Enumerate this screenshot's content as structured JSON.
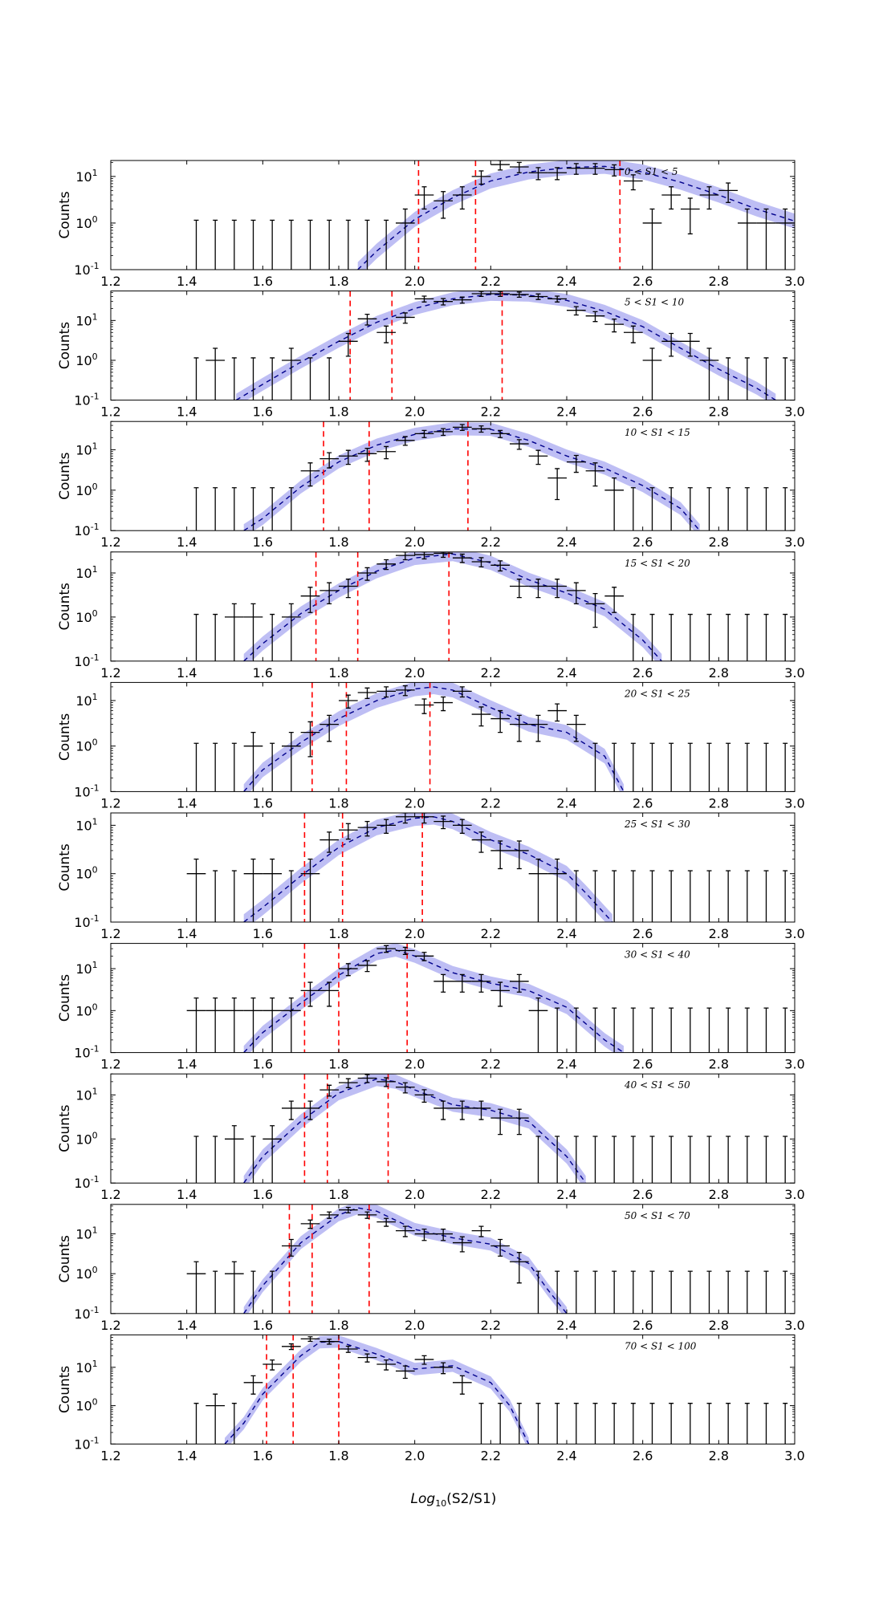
{
  "chart_data": {
    "type": "line",
    "xlabel": "Log10(S2/S1)",
    "ylabel": "Counts",
    "xlim": [
      1.2,
      3.0
    ],
    "xticks": [
      "1.2",
      "1.4",
      "1.6",
      "1.8",
      "2.0",
      "2.2",
      "2.4",
      "2.6",
      "2.8",
      "3.0"
    ],
    "yscale": "log",
    "yticks": [
      "10-1",
      "100",
      "101"
    ],
    "bin_centers": [
      1.425,
      1.475,
      1.525,
      1.575,
      1.625,
      1.675,
      1.725,
      1.775,
      1.825,
      1.875,
      1.925,
      1.975,
      2.025,
      2.075,
      2.125,
      2.175,
      2.225,
      2.275,
      2.325,
      2.375,
      2.425,
      2.475,
      2.525,
      2.575,
      2.625,
      2.675,
      2.725,
      2.775,
      2.825,
      2.875,
      2.925,
      2.975
    ],
    "legend": [],
    "panels": [
      {
        "label": "0 < S1 < 5",
        "ymax": 22,
        "counts": [
          0,
          0,
          0,
          0,
          0,
          0,
          0,
          0,
          0,
          0,
          0,
          1,
          4,
          3,
          4,
          10,
          18,
          16,
          12,
          12,
          15,
          15,
          14,
          8,
          1,
          4,
          2,
          4,
          5,
          1,
          1,
          1
        ],
        "fit": [
          [
            1.85,
            0.1
          ],
          [
            1.9,
            0.25
          ],
          [
            2.0,
            1.2
          ],
          [
            2.1,
            3.5
          ],
          [
            2.2,
            8
          ],
          [
            2.3,
            12.5
          ],
          [
            2.4,
            15.5
          ],
          [
            2.5,
            16.5
          ],
          [
            2.6,
            12.5
          ],
          [
            2.7,
            7.5
          ],
          [
            2.8,
            4
          ],
          [
            2.9,
            2
          ],
          [
            3.0,
            1.1
          ]
        ],
        "percentile_lines": [
          2.01,
          2.16,
          2.54
        ]
      },
      {
        "label": "5 < S1 < 10",
        "ymax": 55,
        "counts": [
          0,
          1,
          0,
          0,
          0,
          1,
          0,
          0,
          3,
          11,
          5,
          12,
          35,
          30,
          33,
          47,
          47,
          45,
          40,
          35,
          18,
          13,
          8,
          5,
          1,
          3,
          3,
          1,
          0,
          0,
          0,
          0
        ],
        "fit": [
          [
            1.53,
            0.1
          ],
          [
            1.6,
            0.25
          ],
          [
            1.7,
            0.9
          ],
          [
            1.8,
            3
          ],
          [
            1.9,
            9
          ],
          [
            2.0,
            20
          ],
          [
            2.1,
            35
          ],
          [
            2.2,
            45
          ],
          [
            2.3,
            43
          ],
          [
            2.4,
            32
          ],
          [
            2.5,
            17
          ],
          [
            2.6,
            7
          ],
          [
            2.7,
            2
          ],
          [
            2.8,
            0.6
          ],
          [
            2.9,
            0.2
          ],
          [
            2.95,
            0.1
          ]
        ],
        "percentile_lines": [
          1.83,
          1.94,
          2.23
        ]
      },
      {
        "label": "10 < S1 < 15",
        "ymax": 50,
        "counts": [
          0,
          0,
          0,
          0,
          0,
          0,
          3,
          6,
          7,
          8,
          9,
          17,
          25,
          28,
          36,
          33,
          25,
          14,
          7,
          2,
          5,
          3,
          1,
          0,
          0,
          0,
          0,
          0,
          0,
          0,
          0,
          0
        ],
        "fit": [
          [
            1.55,
            0.1
          ],
          [
            1.6,
            0.2
          ],
          [
            1.7,
            1.2
          ],
          [
            1.8,
            5
          ],
          [
            1.9,
            13
          ],
          [
            2.0,
            24
          ],
          [
            2.1,
            33
          ],
          [
            2.2,
            32
          ],
          [
            2.3,
            17
          ],
          [
            2.4,
            7
          ],
          [
            2.5,
            3.5
          ],
          [
            2.6,
            1.3
          ],
          [
            2.7,
            0.35
          ],
          [
            2.75,
            0.1
          ]
        ],
        "percentile_lines": [
          1.76,
          1.88,
          2.14
        ]
      },
      {
        "label": "15 < S1 < 20",
        "ymax": 30,
        "counts": [
          0,
          0,
          1,
          1,
          0,
          1,
          3,
          4,
          5,
          10,
          16,
          25,
          26,
          28,
          22,
          18,
          15,
          5,
          5,
          5,
          4,
          2,
          3,
          0,
          0,
          0,
          0,
          0,
          0,
          0,
          0,
          0
        ],
        "fit": [
          [
            1.55,
            0.1
          ],
          [
            1.6,
            0.25
          ],
          [
            1.7,
            1.2
          ],
          [
            1.8,
            4
          ],
          [
            1.9,
            11
          ],
          [
            2.0,
            22
          ],
          [
            2.1,
            27
          ],
          [
            2.2,
            17
          ],
          [
            2.3,
            7
          ],
          [
            2.4,
            3.5
          ],
          [
            2.5,
            1.5
          ],
          [
            2.6,
            0.3
          ],
          [
            2.65,
            0.1
          ]
        ],
        "percentile_lines": [
          1.74,
          1.85,
          2.09
        ]
      },
      {
        "label": "20 < S1 < 25",
        "ymax": 25,
        "counts": [
          0,
          0,
          0,
          1,
          0,
          1,
          2,
          3,
          10,
          15,
          16,
          17,
          8,
          9,
          16,
          5,
          4,
          3,
          3,
          6,
          3,
          0,
          0,
          0,
          0,
          0,
          0,
          0,
          0,
          0,
          0,
          0
        ],
        "fit": [
          [
            1.55,
            0.1
          ],
          [
            1.6,
            0.3
          ],
          [
            1.7,
            1.2
          ],
          [
            1.8,
            4
          ],
          [
            1.9,
            10
          ],
          [
            2.0,
            18
          ],
          [
            2.05,
            20
          ],
          [
            2.1,
            17
          ],
          [
            2.2,
            7
          ],
          [
            2.3,
            3
          ],
          [
            2.4,
            2
          ],
          [
            2.5,
            0.6
          ],
          [
            2.55,
            0.1
          ]
        ],
        "percentile_lines": [
          1.73,
          1.82,
          2.04
        ]
      },
      {
        "label": "25 < S1 < 30",
        "ymax": 18,
        "counts": [
          1,
          0,
          0,
          1,
          1,
          0,
          1,
          5,
          8,
          9,
          10,
          15,
          15,
          12,
          10,
          5,
          3,
          3,
          1,
          1,
          0,
          0,
          0,
          0,
          0,
          0,
          0,
          0,
          0,
          0,
          0,
          0
        ],
        "fit": [
          [
            1.55,
            0.1
          ],
          [
            1.6,
            0.2
          ],
          [
            1.7,
            0.9
          ],
          [
            1.8,
            3.5
          ],
          [
            1.9,
            9
          ],
          [
            2.0,
            14
          ],
          [
            2.05,
            15
          ],
          [
            2.1,
            12
          ],
          [
            2.2,
            5
          ],
          [
            2.3,
            2.5
          ],
          [
            2.4,
            1
          ],
          [
            2.45,
            0.4
          ],
          [
            2.52,
            0.1
          ]
        ],
        "percentile_lines": [
          1.71,
          1.81,
          2.02
        ]
      },
      {
        "label": "30 < S1 < 40",
        "ymax": 40,
        "counts": [
          1,
          1,
          1,
          1,
          1,
          1,
          3,
          3,
          10,
          12,
          30,
          27,
          20,
          5,
          5,
          5,
          3,
          5,
          1,
          0,
          0,
          0,
          0,
          0,
          0,
          0,
          0,
          0,
          0,
          0,
          0,
          0
        ],
        "fit": [
          [
            1.55,
            0.1
          ],
          [
            1.6,
            0.3
          ],
          [
            1.7,
            1.5
          ],
          [
            1.8,
            7
          ],
          [
            1.9,
            23
          ],
          [
            1.95,
            28
          ],
          [
            2.0,
            20
          ],
          [
            2.1,
            8
          ],
          [
            2.2,
            4.5
          ],
          [
            2.3,
            3
          ],
          [
            2.4,
            1.2
          ],
          [
            2.5,
            0.2
          ],
          [
            2.55,
            0.1
          ]
        ],
        "percentile_lines": [
          1.71,
          1.8,
          1.98
        ]
      },
      {
        "label": "40 < S1 < 50",
        "ymax": 30,
        "counts": [
          0,
          0,
          1,
          0,
          1,
          5,
          5,
          13,
          19,
          24,
          20,
          15,
          10,
          5,
          5,
          5,
          3,
          3,
          0,
          0,
          0,
          0,
          0,
          0,
          0,
          0,
          0,
          0,
          0,
          0,
          0,
          0
        ],
        "fit": [
          [
            1.55,
            0.1
          ],
          [
            1.6,
            0.4
          ],
          [
            1.7,
            2.5
          ],
          [
            1.8,
            11
          ],
          [
            1.9,
            23
          ],
          [
            1.95,
            20
          ],
          [
            2.0,
            13
          ],
          [
            2.1,
            6
          ],
          [
            2.2,
            4.5
          ],
          [
            2.3,
            2.5
          ],
          [
            2.4,
            0.4
          ],
          [
            2.45,
            0.1
          ]
        ],
        "percentile_lines": [
          1.71,
          1.77,
          1.93
        ]
      },
      {
        "label": "50 < S1 < 70",
        "ymax": 55,
        "counts": [
          1,
          0,
          1,
          0,
          0,
          5,
          18,
          30,
          40,
          30,
          20,
          12,
          10,
          10,
          6,
          12,
          5,
          2,
          0,
          0,
          0,
          0,
          0,
          0,
          0,
          0,
          0,
          0,
          0,
          0,
          0,
          0
        ],
        "fit": [
          [
            1.55,
            0.1
          ],
          [
            1.6,
            0.5
          ],
          [
            1.7,
            6
          ],
          [
            1.8,
            30
          ],
          [
            1.85,
            45
          ],
          [
            1.9,
            37
          ],
          [
            2.0,
            13
          ],
          [
            2.1,
            8
          ],
          [
            2.2,
            5.5
          ],
          [
            2.3,
            1.8
          ],
          [
            2.35,
            0.4
          ],
          [
            2.4,
            0.1
          ]
        ],
        "percentile_lines": [
          1.67,
          1.73,
          1.88
        ]
      },
      {
        "label": "70 < S1 < 100",
        "ymax": 70,
        "counts": [
          0,
          1,
          0,
          4,
          12,
          35,
          55,
          47,
          30,
          18,
          12,
          8,
          16,
          10,
          4,
          0,
          0,
          0,
          0,
          0,
          0,
          0,
          0,
          0,
          0,
          0,
          0,
          0,
          0,
          0,
          0,
          0
        ],
        "fit": [
          [
            1.5,
            0.1
          ],
          [
            1.55,
            0.35
          ],
          [
            1.6,
            2
          ],
          [
            1.7,
            20
          ],
          [
            1.75,
            45
          ],
          [
            1.8,
            47
          ],
          [
            1.9,
            22
          ],
          [
            2.0,
            9
          ],
          [
            2.1,
            11
          ],
          [
            2.2,
            4
          ],
          [
            2.25,
            1
          ],
          [
            2.3,
            0.1
          ]
        ],
        "percentile_lines": [
          1.61,
          1.68,
          1.8
        ]
      }
    ]
  },
  "colors": {
    "data_points": "#000000",
    "fit_line": "#00008b",
    "fit_band": "#b3b3f2",
    "percentile_lines": "#ff0000"
  }
}
